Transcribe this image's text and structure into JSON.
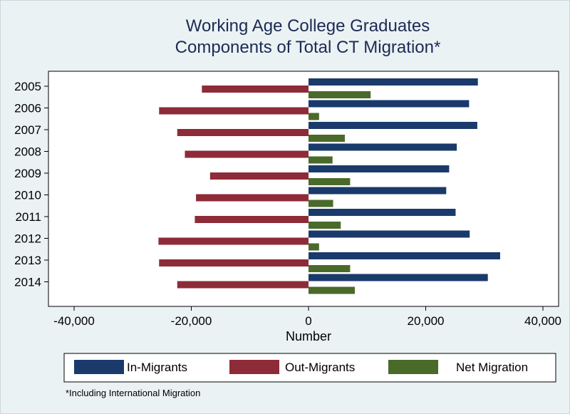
{
  "chart_data": {
    "type": "bar",
    "orientation": "horizontal",
    "title": [
      "Working Age College Graduates",
      "Components of Total CT Migration*"
    ],
    "categories": [
      "2005",
      "2006",
      "2007",
      "2008",
      "2009",
      "2010",
      "2011",
      "2012",
      "2013",
      "2014"
    ],
    "series": [
      {
        "name": "In-Migrants",
        "color": "#1a3a6b",
        "values": [
          28900,
          27400,
          28800,
          25300,
          24000,
          23500,
          25100,
          27500,
          32700,
          30600
        ]
      },
      {
        "name": "Out-Migrants",
        "color": "#8e2b38",
        "values": [
          -18200,
          -25500,
          -22400,
          -21100,
          -16800,
          -19200,
          -19400,
          -25600,
          -25500,
          -22400
        ]
      },
      {
        "name": "Net Migration",
        "color": "#4a6a2a",
        "values": [
          10600,
          1800,
          6200,
          4100,
          7100,
          4200,
          5500,
          1800,
          7100,
          7900
        ]
      }
    ],
    "xlim": [
      -40000,
      40000
    ],
    "xticks": [
      -40000,
      -20000,
      0,
      20000,
      40000
    ],
    "xtick_labels": [
      "-40,000",
      "-20,000",
      "0",
      "20,000",
      "40,000"
    ],
    "xlabel": "Number",
    "ylabel": "",
    "grid": false,
    "legend_position": "bottom",
    "note": "*Including International Migration"
  }
}
